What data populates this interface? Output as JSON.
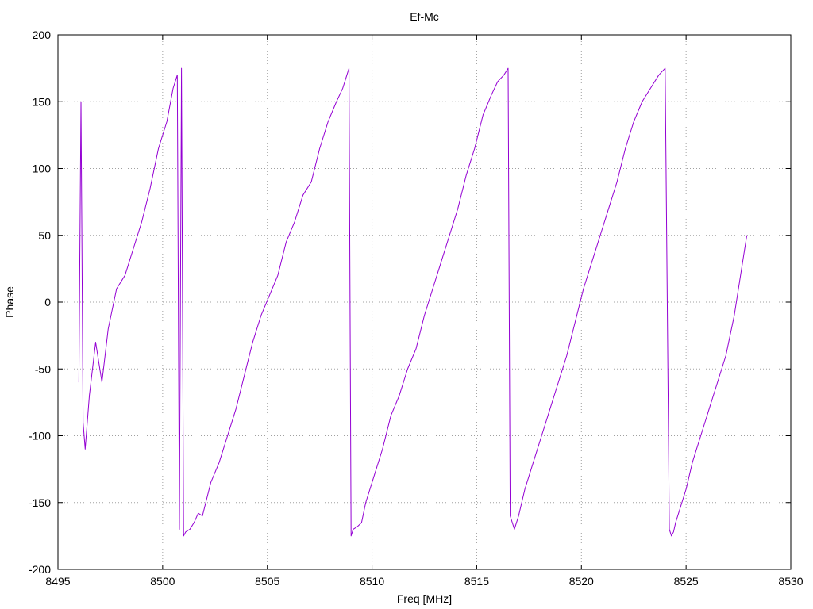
{
  "chart_data": {
    "type": "line",
    "title": "Ef-Mc",
    "xlabel": "Freq [MHz]",
    "ylabel": "Phase",
    "xlim": [
      8495,
      8530
    ],
    "ylim": [
      -200,
      200
    ],
    "xticks": [
      8495,
      8500,
      8505,
      8510,
      8515,
      8520,
      8525,
      8530
    ],
    "yticks": [
      -200,
      -150,
      -100,
      -50,
      0,
      50,
      100,
      150,
      200
    ],
    "grid": true,
    "legend": "none",
    "series_color": "#9400d3",
    "series": [
      {
        "x": [
          8496.0,
          8496.1,
          8496.2,
          8496.3,
          8496.5,
          8496.8,
          8497.1,
          8497.4,
          8497.8,
          8498.2,
          8498.6,
          8499.0,
          8499.4,
          8499.8,
          8500.2,
          8500.5,
          8500.7,
          8500.8,
          8500.9,
          8501.0,
          8501.1,
          8501.3,
          8501.5,
          8501.7,
          8501.9,
          8502.3,
          8502.7,
          8503.1,
          8503.5,
          8503.9,
          8504.3,
          8504.7,
          8505.1,
          8505.5,
          8505.9,
          8506.3,
          8506.7,
          8507.1,
          8507.5,
          8507.9,
          8508.3,
          8508.6,
          8508.8,
          8508.9,
          8509.0,
          8509.1,
          8509.3,
          8509.5,
          8509.7,
          8510.1,
          8510.5,
          8510.9,
          8511.3,
          8511.7,
          8512.1,
          8512.5,
          8512.9,
          8513.3,
          8513.7,
          8514.1,
          8514.5,
          8514.9,
          8515.3,
          8515.7,
          8516.0,
          8516.3,
          8516.5,
          8516.6,
          8516.7,
          8516.8,
          8517.0,
          8517.3,
          8517.7,
          8518.1,
          8518.5,
          8518.9,
          8519.3,
          8519.7,
          8520.1,
          8520.5,
          8520.9,
          8521.3,
          8521.7,
          8522.1,
          8522.5,
          8522.9,
          8523.3,
          8523.7,
          8524.0,
          8524.2,
          8524.3,
          8524.4,
          8524.5,
          8524.7,
          8525.0,
          8525.3,
          8525.7,
          8526.1,
          8526.5,
          8526.9,
          8527.3,
          8527.6,
          8527.8,
          8527.9
        ],
        "y": [
          -60,
          150,
          -90,
          -110,
          -70,
          -30,
          -60,
          -20,
          10,
          20,
          40,
          60,
          85,
          115,
          135,
          160,
          170,
          -170,
          175,
          -175,
          -172,
          -170,
          -165,
          -158,
          -160,
          -135,
          -120,
          -100,
          -80,
          -55,
          -30,
          -10,
          5,
          20,
          45,
          60,
          80,
          90,
          115,
          135,
          150,
          160,
          170,
          175,
          -175,
          -170,
          -168,
          -165,
          -150,
          -130,
          -110,
          -85,
          -70,
          -50,
          -35,
          -10,
          10,
          30,
          50,
          70,
          95,
          115,
          140,
          155,
          165,
          170,
          175,
          -160,
          -165,
          -170,
          -160,
          -140,
          -120,
          -100,
          -80,
          -60,
          -40,
          -15,
          10,
          30,
          50,
          70,
          90,
          115,
          135,
          150,
          160,
          170,
          175,
          -170,
          -175,
          -172,
          -165,
          -155,
          -140,
          -120,
          -100,
          -80,
          -60,
          -40,
          -10,
          20,
          40,
          50
        ]
      }
    ]
  }
}
